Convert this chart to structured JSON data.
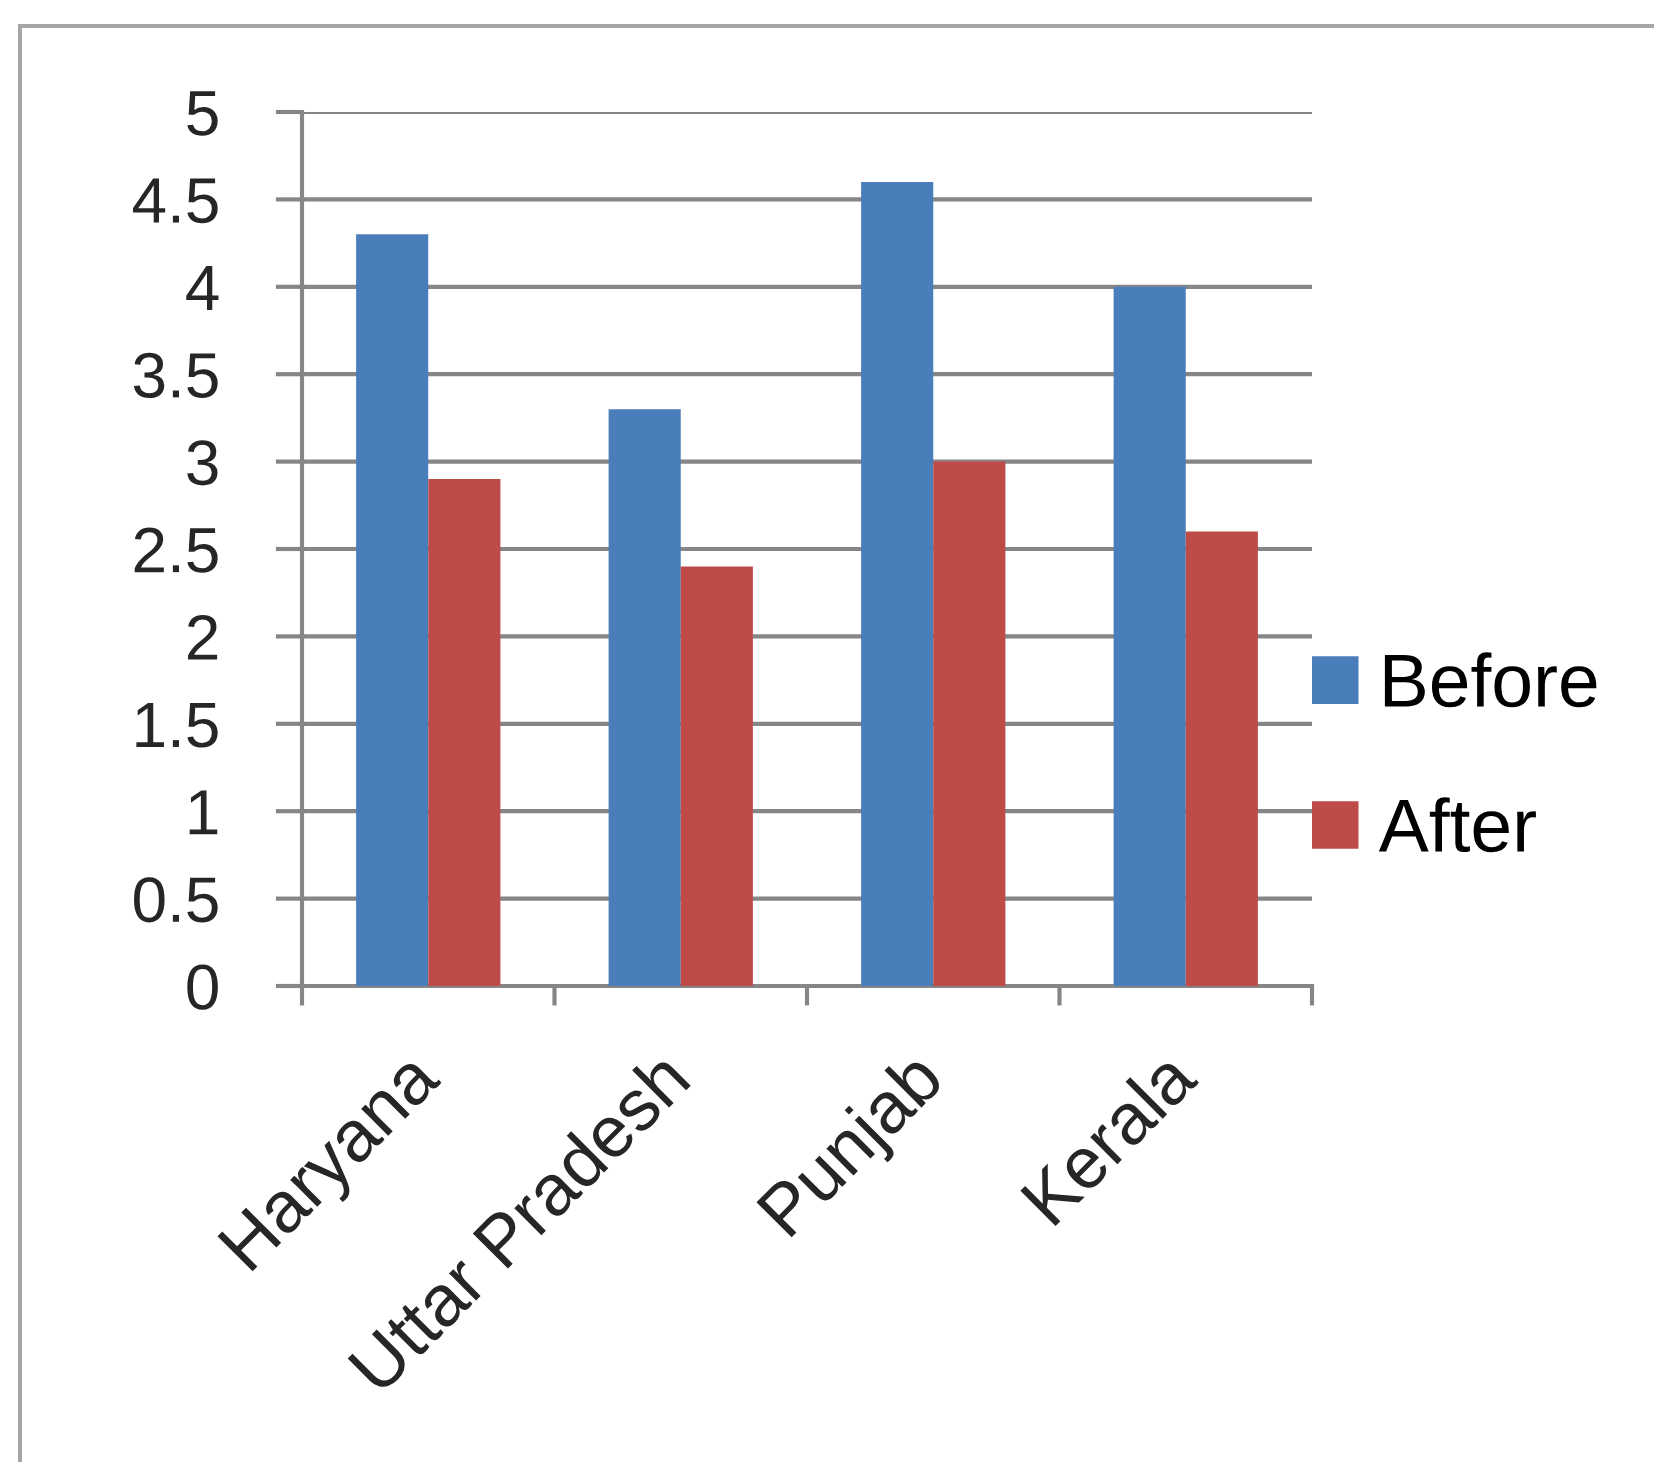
{
  "chart_data": {
    "type": "bar",
    "categories": [
      "Haryana",
      "Uttar Pradesh",
      "Punjab",
      "Kerala"
    ],
    "series": [
      {
        "name": "Before",
        "color": "#4a7ebb",
        "values": [
          4.3,
          3.3,
          4.6,
          4.0
        ]
      },
      {
        "name": "After",
        "color": "#be4b48",
        "values": [
          2.9,
          2.4,
          3.0,
          2.6
        ]
      }
    ],
    "ylim": [
      0,
      5
    ],
    "yticks": [
      0,
      0.5,
      1,
      1.5,
      2,
      2.5,
      3,
      3.5,
      4,
      4.5,
      5
    ],
    "grid": "y",
    "legend": "right"
  }
}
